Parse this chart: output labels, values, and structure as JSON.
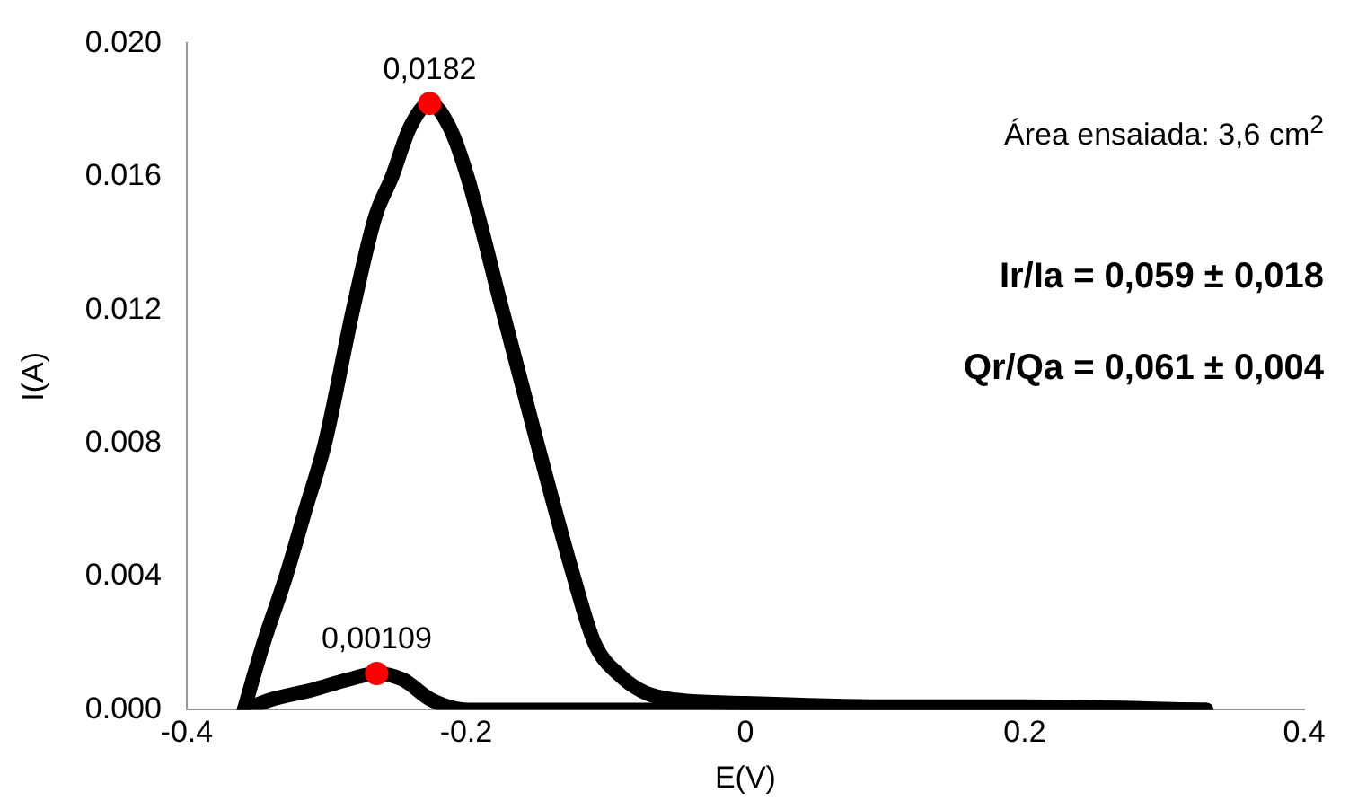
{
  "chart_data": {
    "type": "line",
    "xlabel": "E(V)",
    "ylabel": "I(A)",
    "xlim": [
      -0.4,
      0.4
    ],
    "xticks": [
      -0.4,
      -0.2,
      0,
      0.2,
      0.4
    ],
    "ylim": [
      0,
      0.02
    ],
    "yticks": [
      {
        "value": 0,
        "label": "0.000"
      },
      {
        "value": 0.004,
        "label": "0.004"
      },
      {
        "value": 0.008,
        "label": "0.008"
      },
      {
        "value": 0.012,
        "label": "0.012"
      },
      {
        "value": 0.016,
        "label": "0.016"
      },
      {
        "value": 0.02,
        "label": "0.020"
      }
    ],
    "grid": false,
    "legend": false,
    "marker": "none",
    "line_style": "solid",
    "series": [
      {
        "color": "#000000",
        "x": [
          -0.359,
          -0.345,
          -0.329,
          -0.315,
          -0.301,
          -0.281,
          -0.265,
          -0.253,
          -0.24,
          -0.226,
          -0.212,
          -0.199,
          -0.174,
          -0.149,
          -0.123,
          -0.108,
          -0.089,
          -0.071,
          -0.05,
          0,
          0.1,
          0.2,
          0.33
        ],
        "values": [
          0,
          0.002,
          0.004,
          0.006,
          0.008,
          0.012,
          0.0148,
          0.016,
          0.0175,
          0.0182,
          0.0175,
          0.016,
          0.012,
          0.008,
          0.004,
          0.002,
          0.001,
          0.0005,
          0.0003,
          0.0002,
          0.0001,
          0.0001,
          0
        ]
      },
      {
        "color": "#000000",
        "x": [
          -0.359,
          -0.34,
          -0.31,
          -0.285,
          -0.264,
          -0.245,
          -0.225,
          -0.199,
          -0.15,
          0,
          0.2,
          0.33
        ],
        "values": [
          0,
          0.0003,
          0.0006,
          0.0009,
          0.00109,
          0.0009,
          0.0003,
          0,
          0,
          0,
          0,
          0
        ]
      },
      {
        "type": "scatter",
        "marker": "circle",
        "color": "#ff0000",
        "x": [
          -0.226,
          -0.264
        ],
        "values": [
          0.0182,
          0.00109
        ],
        "value_labels": [
          "0,0182",
          "0,00109"
        ]
      }
    ],
    "annotations": [
      "Área ensaiada: 3,6 cm$^{2}$",
      "Ir/Ia = 0,059 ± 0,018",
      "Qr/Qa = 0,061 ± 0,004"
    ]
  }
}
